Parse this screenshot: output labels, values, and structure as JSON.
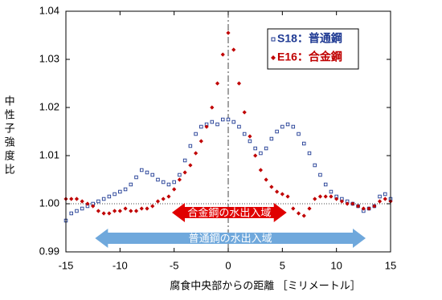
{
  "chart_data": {
    "type": "scatter",
    "y_label": "中性子強度比",
    "x_label": "腐食中央部からの距離 ［ミリメートル］",
    "xlim": [
      -15,
      15
    ],
    "xticks": [
      -15,
      -10,
      -5,
      0,
      5,
      10,
      15
    ],
    "ylim": [
      0.99,
      1.04
    ],
    "yticks": [
      0.99,
      {
        "value": 1,
        "label": "1.00"
      },
      1.01,
      1.02,
      1.03,
      1.04
    ],
    "grid": false,
    "legend": "upper right",
    "x": [
      -15,
      -14.5,
      -14,
      -13.5,
      -13,
      -12.5,
      -12,
      -11.5,
      -11,
      -10.5,
      -10,
      -9.5,
      -9,
      -8.5,
      -8,
      -7.5,
      -7,
      -6.5,
      -6,
      -5.5,
      -5,
      -4.5,
      -4,
      -3.5,
      -3,
      -2.5,
      -2,
      -1.5,
      -1,
      -0.5,
      0,
      0.5,
      1,
      1.5,
      2,
      2.5,
      3,
      3.5,
      4,
      4.5,
      5,
      5.5,
      6,
      6.5,
      7,
      7.5,
      8,
      8.5,
      9,
      9.5,
      10,
      10.5,
      11,
      11.5,
      12,
      12.5,
      13,
      13.5,
      14,
      14.5,
      15
    ],
    "series": [
      {
        "name": "S18：普通鋼",
        "color": "#1f3a93",
        "marker": "square",
        "values": [
          0.9965,
          0.998,
          0.9985,
          0.999,
          0.9995,
          1.0,
          1.0005,
          1.001,
          1.0015,
          1.002,
          1.0025,
          1.003,
          1.004,
          1.0055,
          1.007,
          1.0065,
          1.006,
          1.005,
          1.0045,
          1.004,
          1.0045,
          1.006,
          1.009,
          1.012,
          1.0145,
          1.016,
          1.0165,
          1.017,
          1.0165,
          1.0175,
          1.0175,
          1.017,
          1.016,
          1.0145,
          1.013,
          1.0115,
          1.0105,
          1.0115,
          1.0135,
          1.015,
          1.016,
          1.0165,
          1.016,
          1.0145,
          1.0125,
          1.0105,
          1.008,
          1.006,
          1.004,
          1.0025,
          1.0015,
          1.001,
          1.0005,
          1.0,
          0.9995,
          0.9985,
          0.999,
          0.9995,
          1.0015,
          1.002,
          1.001
        ]
      },
      {
        "name": "E16：合金鋼",
        "color": "#c00000",
        "marker": "diamond",
        "values": [
          1.001,
          1.001,
          1.001,
          1.0005,
          1.0,
          0.9995,
          0.9985,
          0.998,
          0.998,
          0.9985,
          0.9985,
          0.999,
          0.9985,
          0.9985,
          0.999,
          0.999,
          0.9995,
          1.0005,
          1.001,
          1.0015,
          1.003,
          1.005,
          1.0065,
          1.008,
          1.0105,
          1.013,
          1.016,
          1.02,
          1.025,
          1.031,
          1.0355,
          1.032,
          1.025,
          1.019,
          1.014,
          1.01,
          1.007,
          1.005,
          1.0035,
          1.0025,
          1.002,
          1.0015,
          0.999,
          0.998,
          0.9975,
          0.999,
          1.001,
          1.0015,
          1.0015,
          1.0015,
          1.001,
          1.0005,
          1.0,
          1.0,
          0.9995,
          0.999,
          0.999,
          0.9995,
          1.0005,
          1.001,
          1.0005
        ]
      }
    ],
    "annotations": [
      {
        "text": "合金鋼の水出入域",
        "range": [
          -5.2,
          5.4
        ],
        "color": "#e00000"
      },
      {
        "text": "普通鋼の水出入域",
        "range": [
          -12.3,
          12.7
        ],
        "color": "#6fa8dc"
      }
    ]
  }
}
